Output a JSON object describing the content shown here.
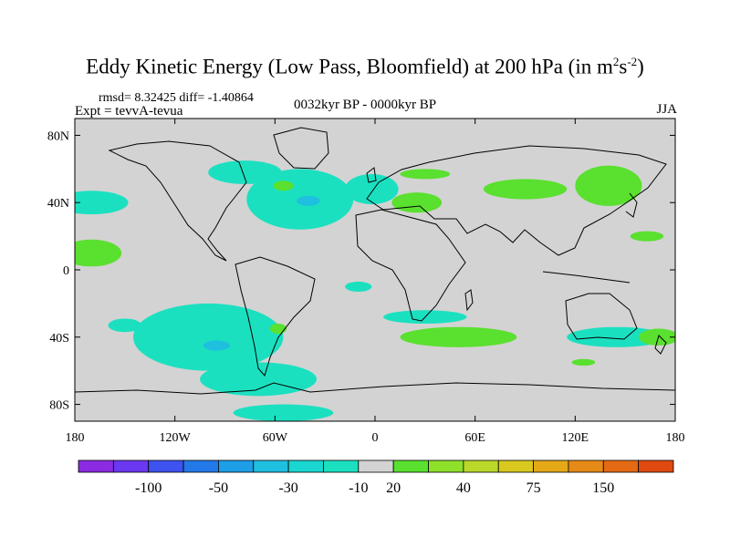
{
  "title": {
    "main": "Eddy Kinetic Energy (Low Pass, Bloomfield) at 200 hPa (in m",
    "sup1": "2",
    "mid": "s",
    "sup2": "-2",
    "end": ")"
  },
  "stats": "rmsd= 8.32425 diff= -1.40864",
  "experiment": "Expt = tevvA-tevua",
  "period": "0032kyr BP - 0000kyr BP",
  "season": "JJA",
  "chart_data": {
    "type": "filled-contour-map",
    "projection": "cylindrical-equidistant",
    "lon_range": [
      -180,
      180
    ],
    "lat_range": [
      -90,
      90
    ],
    "x_ticks": [
      {
        "lon": -180,
        "label": "180"
      },
      {
        "lon": -120,
        "label": "120W"
      },
      {
        "lon": -60,
        "label": "60W"
      },
      {
        "lon": 0,
        "label": "0"
      },
      {
        "lon": 60,
        "label": "60E"
      },
      {
        "lon": 120,
        "label": "120E"
      },
      {
        "lon": 180,
        "label": "180"
      }
    ],
    "y_ticks": [
      {
        "lat": 80,
        "label": "80N"
      },
      {
        "lat": 40,
        "label": "40N"
      },
      {
        "lat": 0,
        "label": "0"
      },
      {
        "lat": -40,
        "label": "40S"
      },
      {
        "lat": -80,
        "label": "80S"
      }
    ],
    "background_color": "#d3d3d3",
    "regions": [
      {
        "level": "-10 to 0",
        "color": "#1be0c0",
        "center": [
          -170,
          40
        ],
        "radius": [
          22,
          7
        ]
      },
      {
        "level": "-10 to 0",
        "color": "#1be0c0",
        "center": [
          -45,
          42
        ],
        "radius": [
          32,
          18
        ]
      },
      {
        "level": "-10 to 0",
        "color": "#1be0c0",
        "center": [
          -78,
          58
        ],
        "radius": [
          22,
          7
        ]
      },
      {
        "level": "-10 to 0",
        "color": "#1be0c0",
        "center": [
          -2,
          48
        ],
        "radius": [
          16,
          9
        ]
      },
      {
        "level": "-10 to 0",
        "color": "#1be0c0",
        "center": [
          -100,
          -40
        ],
        "radius": [
          45,
          20
        ]
      },
      {
        "level": "-10 to 0",
        "color": "#1be0c0",
        "center": [
          -70,
          -65
        ],
        "radius": [
          35,
          10
        ]
      },
      {
        "level": "-10 to 0",
        "color": "#1be0c0",
        "center": [
          -55,
          -85
        ],
        "radius": [
          30,
          5
        ]
      },
      {
        "level": "-10 to 0",
        "color": "#1be0c0",
        "center": [
          -150,
          -33
        ],
        "radius": [
          10,
          4
        ]
      },
      {
        "level": "-10 to 0",
        "color": "#1be0c0",
        "center": [
          30,
          -28
        ],
        "radius": [
          25,
          4
        ]
      },
      {
        "level": "-10 to 0",
        "color": "#1be0c0",
        "center": [
          -10,
          -10
        ],
        "radius": [
          8,
          3
        ]
      },
      {
        "level": "-10 to 0",
        "color": "#1be0c0",
        "center": [
          145,
          -40
        ],
        "radius": [
          30,
          6
        ]
      },
      {
        "level": "-30 to -10",
        "color": "#1fbfe0",
        "center": [
          -95,
          -45
        ],
        "radius": [
          8,
          3
        ]
      },
      {
        "level": "-30 to -10",
        "color": "#1fbfe0",
        "center": [
          -40,
          41
        ],
        "radius": [
          7,
          3
        ]
      },
      {
        "level": "10 to 20",
        "color": "#5ae02f",
        "center": [
          -170,
          10
        ],
        "radius": [
          18,
          8
        ]
      },
      {
        "level": "10 to 20",
        "color": "#5ae02f",
        "center": [
          25,
          40
        ],
        "radius": [
          15,
          6
        ]
      },
      {
        "level": "10 to 20",
        "color": "#5ae02f",
        "center": [
          90,
          48
        ],
        "radius": [
          25,
          6
        ]
      },
      {
        "level": "10 to 20",
        "color": "#5ae02f",
        "center": [
          140,
          50
        ],
        "radius": [
          20,
          12
        ]
      },
      {
        "level": "10 to 20",
        "color": "#5ae02f",
        "center": [
          163,
          20
        ],
        "radius": [
          10,
          3
        ]
      },
      {
        "level": "10 to 20",
        "color": "#5ae02f",
        "center": [
          50,
          -40
        ],
        "radius": [
          35,
          6
        ]
      },
      {
        "level": "10 to 20",
        "color": "#5ae02f",
        "center": [
          -58,
          -35
        ],
        "radius": [
          5,
          3
        ]
      },
      {
        "level": "10 to 20",
        "color": "#5ae02f",
        "center": [
          170,
          -40
        ],
        "radius": [
          12,
          5
        ]
      },
      {
        "level": "10 to 20",
        "color": "#5ae02f",
        "center": [
          125,
          -55
        ],
        "radius": [
          7,
          2
        ]
      },
      {
        "level": "10 to 20",
        "color": "#5ae02f",
        "center": [
          -55,
          50
        ],
        "radius": [
          6,
          3
        ]
      },
      {
        "level": "10 to 20",
        "color": "#5ae02f",
        "center": [
          30,
          57
        ],
        "radius": [
          15,
          3
        ]
      }
    ]
  },
  "colorbar": {
    "colors": [
      "#8a2be2",
      "#6a38f0",
      "#3e52f0",
      "#2479e8",
      "#1e9ee6",
      "#1fbfe0",
      "#1ad6d0",
      "#1be0c0",
      "#d3d3d3",
      "#5ae02f",
      "#8ee02a",
      "#b9d82a",
      "#d9c91e",
      "#e5a917",
      "#e58a16",
      "#e56a14",
      "#e04a10"
    ],
    "labels": [
      "-100",
      "-50",
      "-30",
      "-10",
      "20",
      "40",
      "75",
      "150"
    ]
  }
}
